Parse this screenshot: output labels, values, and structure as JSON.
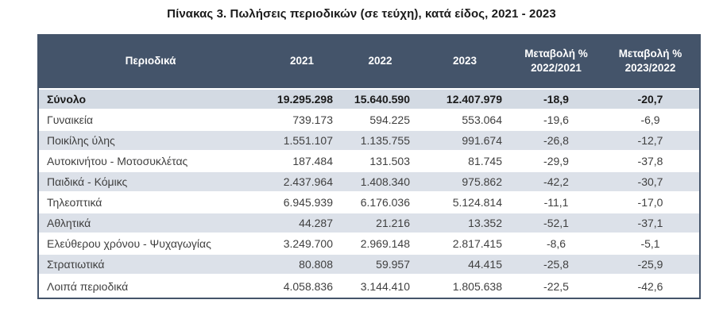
{
  "title": "Πίνακας 3. Πωλήσεις περιοδικών (σε τεύχη), κατά είδος, 2021 - 2023",
  "colors": {
    "header_bg": "#44546A",
    "header_text": "#FFFFFF",
    "total_row_bg": "#D3DAE3",
    "band_row_bg": "#DCE1E9",
    "outer_border": "#44546A",
    "body_text": "#3F3F3F"
  },
  "chart_data": {
    "type": "table",
    "title": "Πίνακας 3. Πωλήσεις περιοδικών (σε τεύχη), κατά είδος, 2021 - 2023",
    "columns": [
      "Περιοδικά",
      "2021",
      "2022",
      "2023",
      "Μεταβολή %\n2022/2021",
      "Μεταβολή %\n2023/2022"
    ],
    "rows": [
      {
        "name": "Σύνολο",
        "is_total": true,
        "values": [
          "19.295.298",
          "15.640.590",
          "12.407.979",
          "-18,9",
          "-20,7"
        ]
      },
      {
        "name": "Γυναικεία",
        "is_total": false,
        "values": [
          "739.173",
          "594.225",
          "553.064",
          "-19,6",
          "-6,9"
        ]
      },
      {
        "name": "Ποικίλης ύλης",
        "is_total": false,
        "values": [
          "1.551.107",
          "1.135.755",
          "991.674",
          "-26,8",
          "-12,7"
        ]
      },
      {
        "name": "Αυτοκινήτου - Μοτοσυκλέτας",
        "is_total": false,
        "values": [
          "187.484",
          "131.503",
          "81.745",
          "-29,9",
          "-37,8"
        ]
      },
      {
        "name": "Παιδικά - Κόμικς",
        "is_total": false,
        "values": [
          "2.437.964",
          "1.408.340",
          "975.862",
          "-42,2",
          "-30,7"
        ]
      },
      {
        "name": "Τηλεοπτικά",
        "is_total": false,
        "values": [
          "6.945.939",
          "6.176.036",
          "5.124.814",
          "-11,1",
          "-17,0"
        ]
      },
      {
        "name": "Αθλητικά",
        "is_total": false,
        "values": [
          "44.287",
          "21.216",
          "13.352",
          "-52,1",
          "-37,1"
        ]
      },
      {
        "name": "Ελεύθερου χρόνου - Ψυχαγωγίας",
        "is_total": false,
        "values": [
          "3.249.700",
          "2.969.148",
          "2.817.415",
          "-8,6",
          "-5,1"
        ]
      },
      {
        "name": "Στρατιωτικά",
        "is_total": false,
        "values": [
          "80.808",
          "59.957",
          "44.415",
          "-25,8",
          "-25,9"
        ]
      },
      {
        "name": "Λοιπά περιοδικά",
        "is_total": false,
        "values": [
          "4.058.836",
          "3.144.410",
          "1.805.638",
          "-22,5",
          "-42,6"
        ]
      }
    ]
  }
}
